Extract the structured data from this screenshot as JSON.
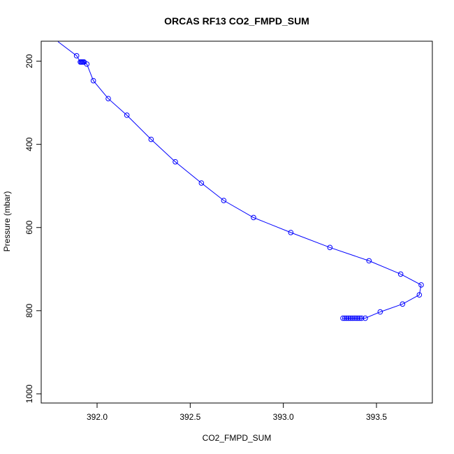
{
  "chart_data": {
    "type": "line",
    "title": "ORCAS RF13 CO2_FMPD_SUM",
    "xlabel": "CO2_FMPD_SUM",
    "ylabel": "Pressure (mbar)",
    "xlim": [
      391.7,
      393.8
    ],
    "ylim": [
      1022,
      152
    ],
    "y_inverted": true,
    "x_ticks": [
      392.0,
      392.5,
      393.0,
      393.5
    ],
    "x_tick_labels": [
      "392.0",
      "392.5",
      "393.0",
      "393.5"
    ],
    "y_ticks": [
      200,
      400,
      600,
      800,
      1000
    ],
    "y_tick_labels": [
      "200",
      "400",
      "600",
      "800",
      "1000"
    ],
    "grid": false,
    "legend": "none",
    "series": [
      {
        "line_color": "#0000ff",
        "marker": "open-circle",
        "marker_color": "#0000ff",
        "points_without_marker": [
          [
            391.79,
            153
          ]
        ],
        "x": [
          391.89,
          391.91,
          391.915,
          391.92,
          391.925,
          391.93,
          391.945,
          391.98,
          392.06,
          392.16,
          392.29,
          392.42,
          392.56,
          392.68,
          392.84,
          393.04,
          393.25,
          393.46,
          393.63,
          393.74,
          393.73,
          393.64,
          393.52,
          393.44,
          393.42,
          393.41,
          393.4,
          393.39,
          393.38,
          393.37,
          393.36,
          393.35,
          393.34,
          393.33,
          393.32
        ],
        "y": [
          187,
          202,
          202,
          202,
          202,
          202,
          207,
          247,
          290,
          330,
          388,
          442,
          493,
          535,
          576,
          612,
          648,
          680,
          712,
          738,
          762,
          784,
          803,
          818,
          818,
          818,
          818,
          818,
          818,
          818,
          818,
          818,
          818,
          818,
          818
        ]
      }
    ]
  }
}
